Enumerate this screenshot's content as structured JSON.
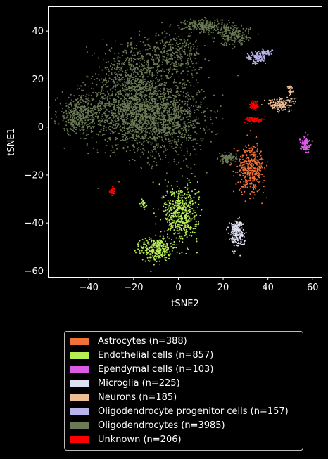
{
  "chart_data": {
    "type": "scatter",
    "xlabel": "tSNE2",
    "ylabel": "tSNE1",
    "xlim": [
      -58,
      64
    ],
    "ylim": [
      -62.5,
      50
    ],
    "xticks": [
      -40,
      -20,
      0,
      20,
      40,
      60
    ],
    "yticks": [
      -60,
      -40,
      -20,
      0,
      20,
      40
    ],
    "grid": false,
    "legend_position": "below",
    "series": [
      {
        "name": "Astrocytes (n=388)",
        "color": "#f07238",
        "n": 388,
        "clusters": [
          {
            "cx": 32.5,
            "cy": -17,
            "sx": 3.0,
            "sy": 5.0,
            "w": 1
          }
        ]
      },
      {
        "name": "Endothelial cells (n=857)",
        "color": "#b7ec55",
        "n": 857,
        "clusters": [
          {
            "cx": 1,
            "cy": -36,
            "sx": 3.8,
            "sy": 6.0,
            "w": 0.62
          },
          {
            "cx": -10,
            "cy": -51,
            "sx": 3.3,
            "sy": 2.6,
            "w": 0.35
          },
          {
            "cx": -15.5,
            "cy": -32,
            "sx": 0.6,
            "sy": 0.8,
            "w": 0.03
          }
        ]
      },
      {
        "name": "Ependymal cells (n=103)",
        "color": "#db5be4",
        "n": 103,
        "clusters": [
          {
            "cx": 56.5,
            "cy": -7,
            "sx": 1.1,
            "sy": 1.6,
            "w": 1
          }
        ]
      },
      {
        "name": "Microglia (n=225)",
        "color": "#dedff0",
        "n": 225,
        "clusters": [
          {
            "cx": 26,
            "cy": -44,
            "sx": 1.6,
            "sy": 2.8,
            "w": 1
          }
        ]
      },
      {
        "name": "Neurons (n=185)",
        "color": "#f0bc92",
        "n": 185,
        "clusters": [
          {
            "cx": 46,
            "cy": 9.5,
            "sx": 3.0,
            "sy": 1.4,
            "w": 0.85
          },
          {
            "cx": 50,
            "cy": 15,
            "sx": 0.7,
            "sy": 1.0,
            "w": 0.15
          }
        ]
      },
      {
        "name": "Oligodendrocyte progenitor cells (n=157)",
        "color": "#b7b3ec",
        "n": 157,
        "clusters": [
          {
            "cx": 35,
            "cy": 29,
            "sx": 2.0,
            "sy": 1.3,
            "w": 0.8
          },
          {
            "cx": 39.5,
            "cy": 31,
            "sx": 1.4,
            "sy": 0.6,
            "w": 0.2
          }
        ]
      },
      {
        "name": "Oligodendrocytes (n=3985)",
        "color": "#6b7a55",
        "n": 3985,
        "clusters": [
          {
            "cx": -22,
            "cy": 8,
            "sx": 9.0,
            "sy": 8.0,
            "w": 0.32
          },
          {
            "cx": -6,
            "cy": 4,
            "sx": 9.0,
            "sy": 8.0,
            "w": 0.28
          },
          {
            "cx": -44,
            "cy": 5,
            "sx": 5.0,
            "sy": 4.0,
            "w": 0.1
          },
          {
            "cx": -20,
            "cy": 25,
            "sx": 7.0,
            "sy": 5.0,
            "w": 0.08
          },
          {
            "cx": -2,
            "cy": 30,
            "sx": 6.0,
            "sy": 4.5,
            "w": 0.08
          },
          {
            "cx": 12,
            "cy": 42,
            "sx": 5.0,
            "sy": 1.5,
            "w": 0.06
          },
          {
            "cx": 25,
            "cy": 38,
            "sx": 3.5,
            "sy": 2.0,
            "w": 0.05
          },
          {
            "cx": 22,
            "cy": -13,
            "sx": 2.0,
            "sy": 1.0,
            "w": 0.03
          }
        ]
      },
      {
        "name": "Unknown (n=206)",
        "color": "#ff0000",
        "n": 206,
        "clusters": [
          {
            "cx": 34,
            "cy": 9,
            "sx": 1.0,
            "sy": 1.0,
            "w": 0.38
          },
          {
            "cx": 34,
            "cy": 3,
            "sx": 2.0,
            "sy": 0.6,
            "w": 0.37
          },
          {
            "cx": -29.5,
            "cy": -27,
            "sx": 0.6,
            "sy": 0.8,
            "w": 0.25
          }
        ]
      }
    ]
  }
}
